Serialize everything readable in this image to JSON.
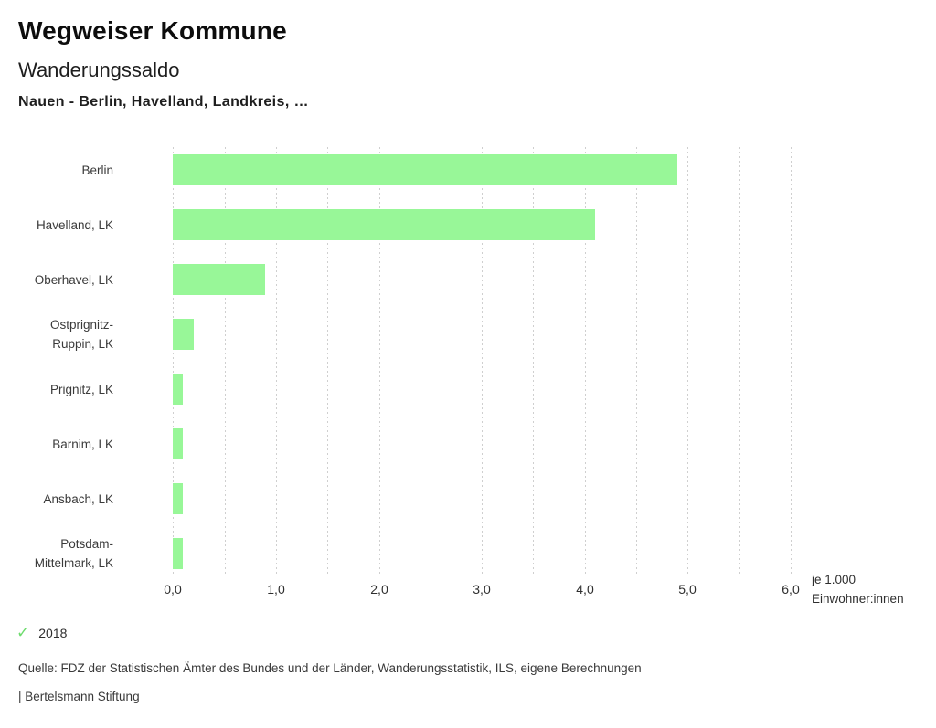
{
  "header": {
    "title": "Wegweiser Kommune",
    "subtitle": "Wanderungssaldo",
    "selection": "Nauen - Berlin, Havelland, Landkreis, …"
  },
  "legend": {
    "year": "2018"
  },
  "footer": {
    "source": "Quelle: FDZ der Statistischen Ämter des Bundes und der Länder, Wanderungsstatistik, ILS, eigene Berechnungen",
    "branding": "| Bertelsmann Stiftung"
  },
  "colors": {
    "bar": "#98f798",
    "legend_check": "#6edc6e",
    "gridline": "#cfcfcf"
  },
  "icons": {
    "legend_check": "✓"
  },
  "chart_data": {
    "type": "bar",
    "orientation": "horizontal",
    "title": "Wanderungssaldo",
    "subtitle": "Nauen - Berlin, Havelland, Landkreis, …",
    "categories": [
      "Berlin",
      "Havelland, LK",
      "Oberhavel, LK",
      "Ostprignitz-Ruppin, LK",
      "Prignitz, LK",
      "Barnim, LK",
      "Ansbach, LK",
      "Potsdam-Mittelmark, LK"
    ],
    "series": [
      {
        "name": "2018",
        "values": [
          4.9,
          4.1,
          0.9,
          0.2,
          0.1,
          0.1,
          0.1,
          0.1
        ]
      }
    ],
    "xlabel": "je 1.000 Einwohner:innen",
    "ylabel": "",
    "xlim": [
      -0.5,
      6.0
    ],
    "grid": true,
    "grid_step": 0.5,
    "tick_values": [
      0,
      1,
      2,
      3,
      4,
      5,
      6
    ],
    "tick_labels": [
      "0,0",
      "1,0",
      "2,0",
      "3,0",
      "4,0",
      "5,0",
      "6,0"
    ],
    "legend_position": "bottom-left"
  }
}
